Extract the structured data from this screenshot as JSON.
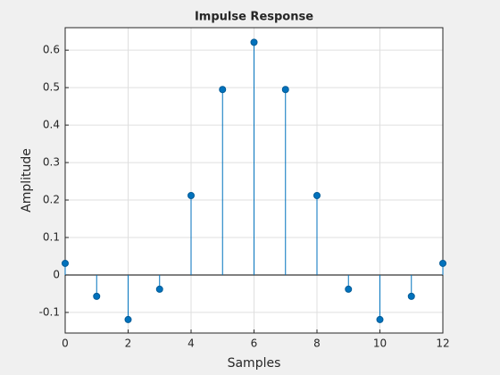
{
  "chart_data": {
    "type": "stem",
    "title": "Impulse Response",
    "xlabel": "Samples",
    "ylabel": "Amplitude",
    "x": [
      0,
      1,
      2,
      3,
      4,
      5,
      6,
      7,
      8,
      9,
      10,
      11,
      12
    ],
    "values": [
      0.031,
      -0.057,
      -0.119,
      -0.038,
      0.212,
      0.495,
      0.621,
      0.495,
      0.212,
      -0.038,
      -0.119,
      -0.057,
      0.031
    ],
    "color": "#0072bd",
    "xlim": [
      0,
      12
    ],
    "xticks": [
      0,
      2,
      4,
      6,
      8,
      10,
      12
    ],
    "ylim": [
      -0.155,
      0.66
    ],
    "yticks": [
      -0.1,
      0,
      0.1,
      0.2,
      0.3,
      0.4,
      0.5,
      0.6
    ],
    "grid": true
  }
}
